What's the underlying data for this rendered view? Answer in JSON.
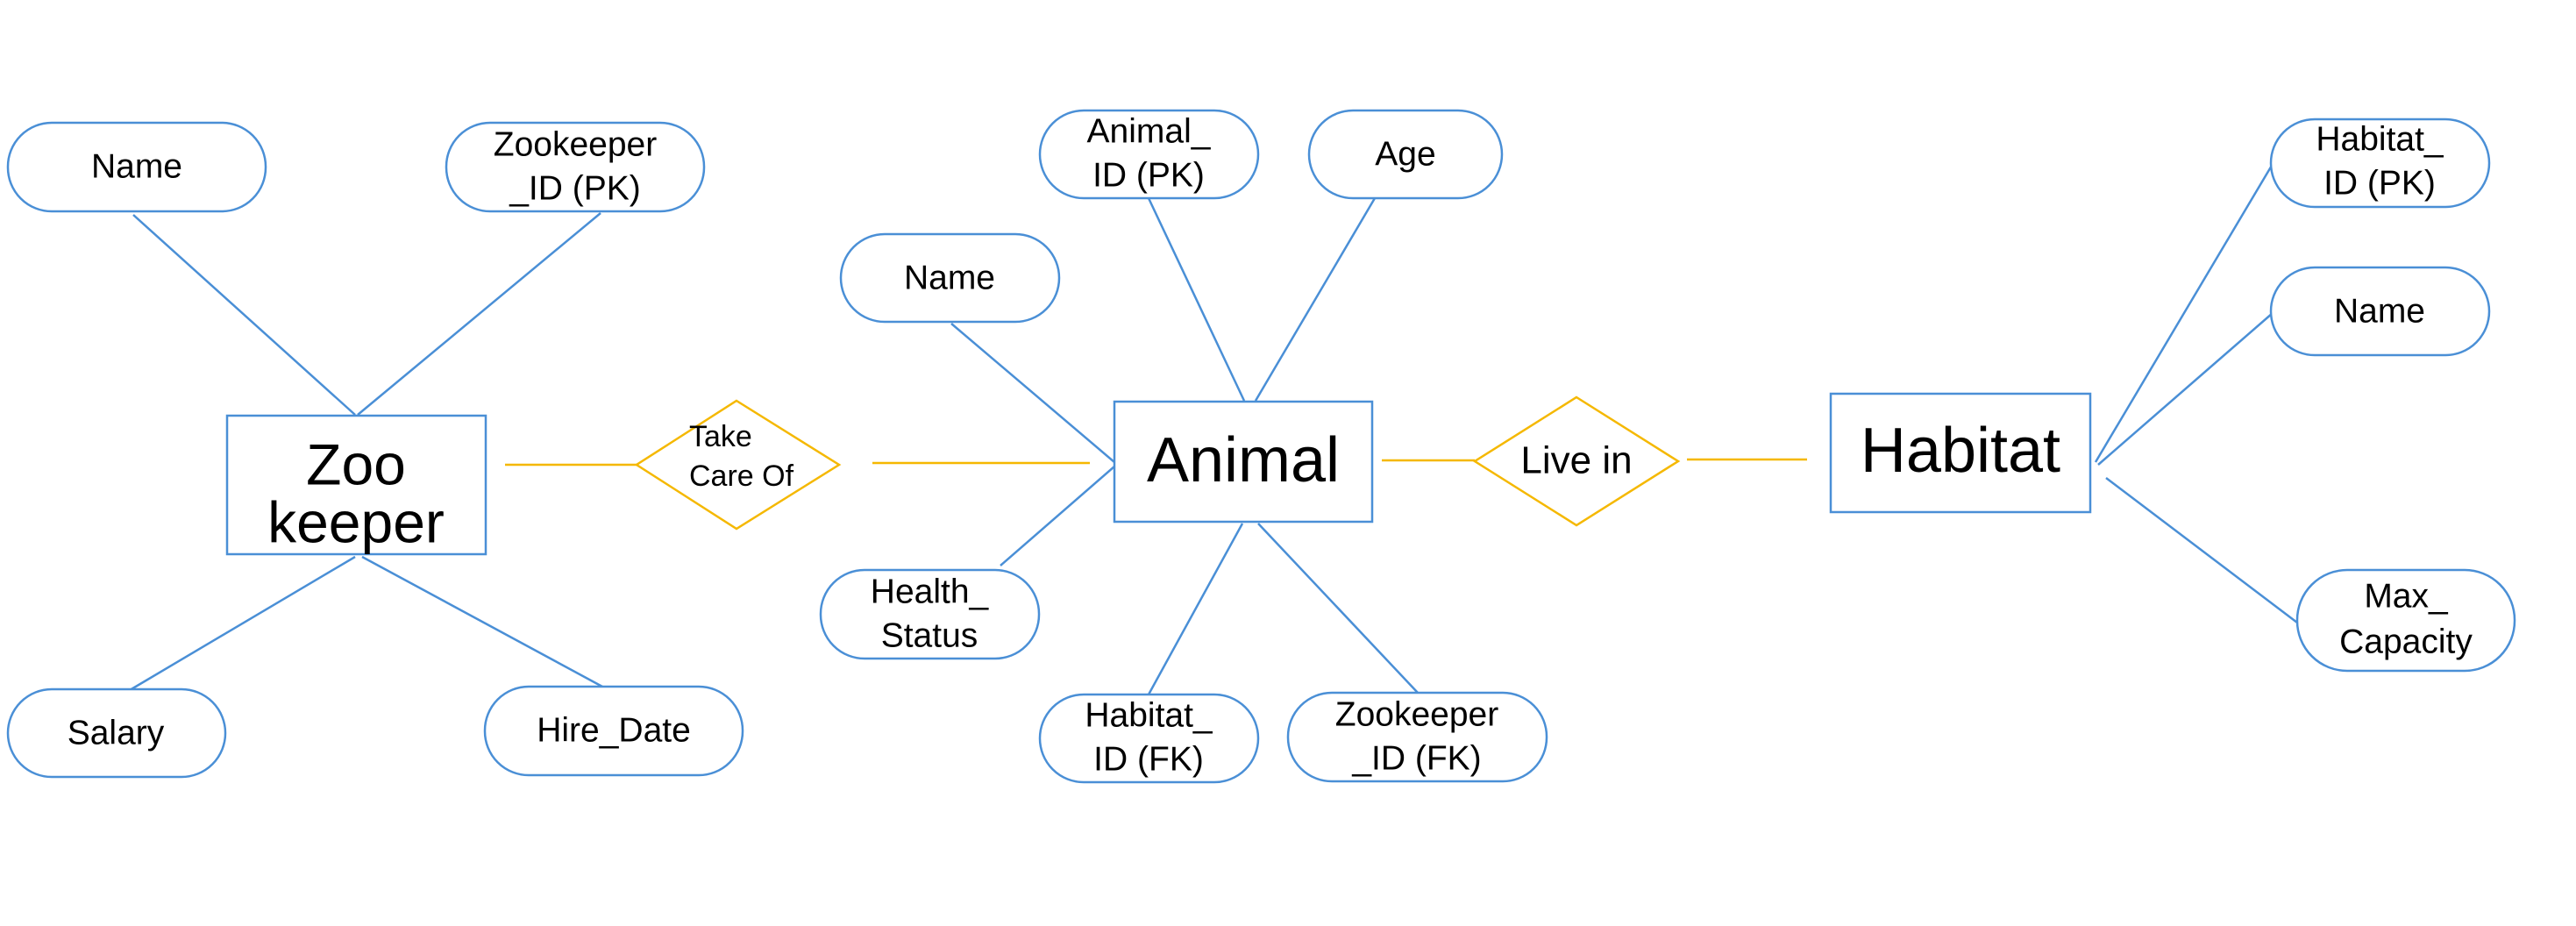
{
  "colors": {
    "entity_stroke": "#4a8fd6",
    "attribute_stroke": "#4a8fd6",
    "attribute_line": "#4a8fd6",
    "relationship_stroke": "#f5b800",
    "relationship_line": "#f5b800",
    "text": "#000000",
    "background": "#ffffff"
  },
  "entities": {
    "zookeeper": {
      "line1": "Zoo",
      "line2": "keeper"
    },
    "animal": {
      "label": "Animal"
    },
    "habitat": {
      "label": "Habitat"
    }
  },
  "relationships": {
    "take_care_of": {
      "line1": "Take",
      "line2": "Care Of"
    },
    "live_in": {
      "label": "Live in"
    }
  },
  "attributes": {
    "zookeeper_name": {
      "lines": [
        "Name"
      ]
    },
    "zookeeper_id": {
      "lines": [
        "Zookeeper",
        "_ID  (PK)"
      ]
    },
    "zookeeper_salary": {
      "lines": [
        "Salary"
      ]
    },
    "zookeeper_hire_date": {
      "lines": [
        "Hire_Date"
      ]
    },
    "animal_id": {
      "lines": [
        "Animal_",
        "ID (PK)"
      ]
    },
    "animal_age": {
      "lines": [
        "Age"
      ]
    },
    "animal_name": {
      "lines": [
        "Name"
      ]
    },
    "animal_health_status": {
      "lines": [
        "Health_",
        "Status"
      ]
    },
    "animal_habitat_id": {
      "lines": [
        "Habitat_",
        "ID (FK)"
      ]
    },
    "animal_zookeeper_id": {
      "lines": [
        "Zookeeper",
        "_ID  (FK)"
      ]
    },
    "habitat_id": {
      "lines": [
        "Habitat_",
        "ID (PK)"
      ]
    },
    "habitat_name": {
      "lines": [
        "Name"
      ]
    },
    "habitat_max_capacity": {
      "lines": [
        "Max_",
        "Capacity"
      ]
    }
  }
}
